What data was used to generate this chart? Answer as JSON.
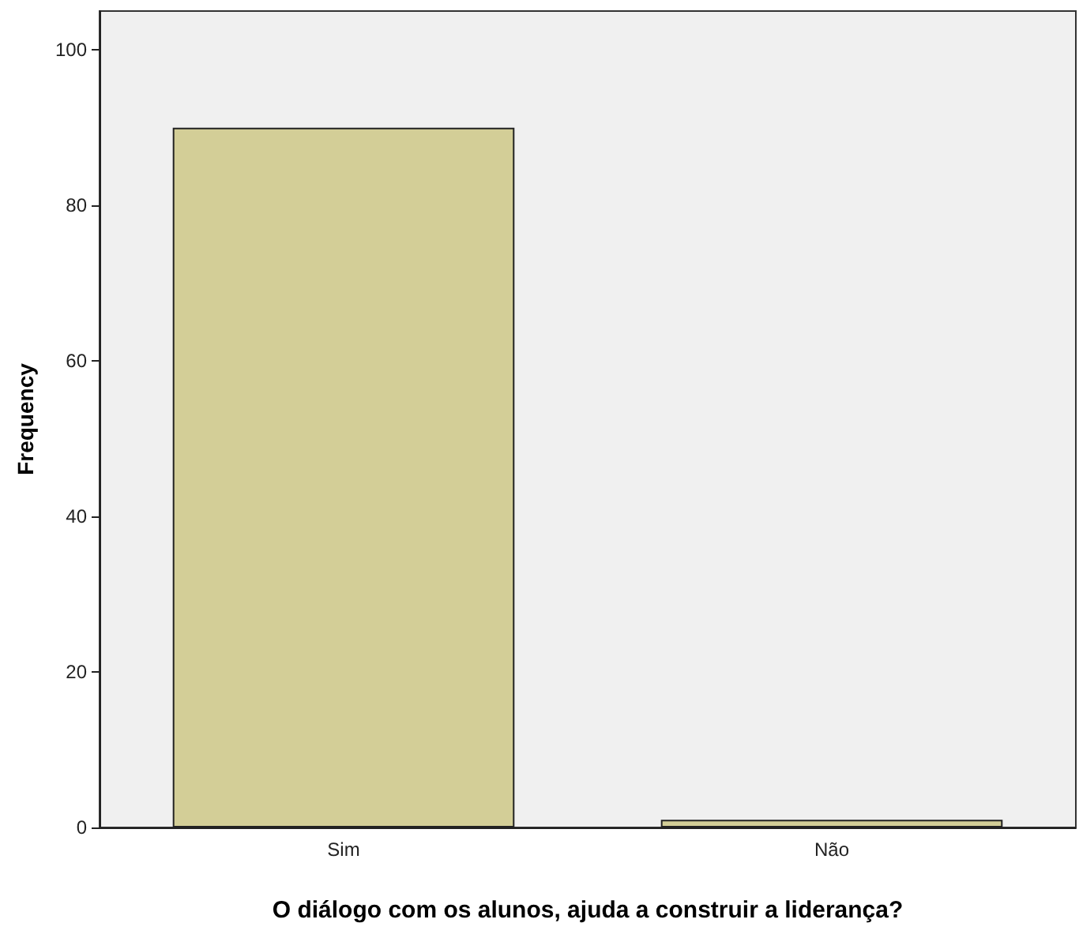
{
  "chart_data": {
    "type": "bar",
    "xlabel": "O diálogo com os alunos, ajuda a construir a liderança?",
    "ylabel": "Frequency",
    "categories": [
      "Sim",
      "Não"
    ],
    "values": [
      90,
      1
    ],
    "color": "#d3ce97",
    "ylim": [
      0,
      105
    ],
    "yticks": [
      0,
      20,
      40,
      60,
      80,
      100
    ],
    "grid": false
  }
}
